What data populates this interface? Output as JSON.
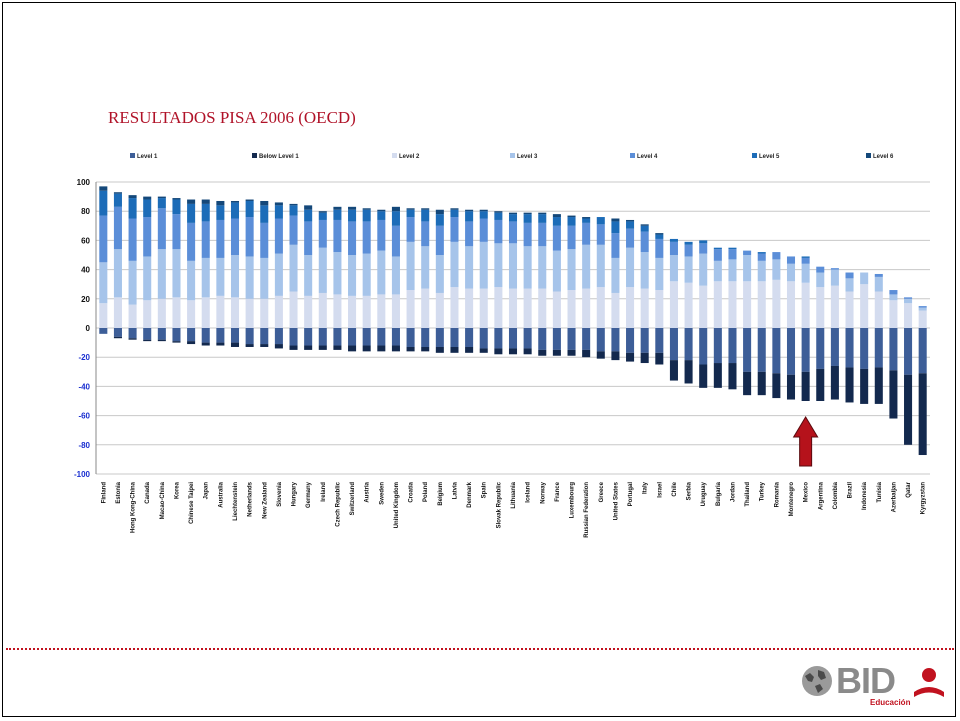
{
  "title": "RESULTADOS PISA 2006 (OECD)",
  "logo": {
    "text": "BID",
    "subtitle": "Educación"
  },
  "chart_data": {
    "type": "bar",
    "stacked": "diverging",
    "ylim": [
      -100,
      100
    ],
    "yticks": [
      100,
      80,
      60,
      40,
      20,
      0,
      -20,
      -40,
      -60,
      -80,
      -100
    ],
    "ytick_labels": [
      "100",
      "80",
      "60",
      "40",
      "20",
      "0",
      "-20",
      "-40",
      "-60",
      "-80",
      "-100"
    ],
    "grid": true,
    "legend_position": "top",
    "legend": [
      "Level 1",
      "Below Level 1",
      "Level 2",
      "Level 3",
      "Level 4",
      "Level 5",
      "Level 6"
    ],
    "colors": {
      "Level 2": "#d4dcef",
      "Level 3": "#a6c4ea",
      "Level 4": "#5b8ed8",
      "Level 5": "#1c6cb8",
      "Level 6": "#14487a",
      "Level 1": "#3d5e98",
      "Below Level 1": "#13294e"
    },
    "categories": [
      "Finland",
      "Estonia",
      "Hong Kong-China",
      "Canada",
      "Macao-China",
      "Korea",
      "Chinese Taipei",
      "Japan",
      "Australia",
      "Liechtenstein",
      "Netherlands",
      "New Zealand",
      "Slovenia",
      "Hungary",
      "Germany",
      "Ireland",
      "Czech Republic",
      "Switzerland",
      "Austria",
      "Sweden",
      "United Kingdom",
      "Croatia",
      "Poland",
      "Belgium",
      "Latvia",
      "Denmark",
      "Spain",
      "Slovak Republic",
      "Lithuania",
      "Iceland",
      "Norway",
      "France",
      "Luxembourg",
      "Russian Federation",
      "Greece",
      "United States",
      "Portugal",
      "Italy",
      "Israel",
      "Chile",
      "Serbia",
      "Uruguay",
      "Bulgaria",
      "Jordan",
      "Thailand",
      "Turkey",
      "Romania",
      "Montenegro",
      "Mexico",
      "Argentina",
      "Colombia",
      "Brazil",
      "Indonesia",
      "Tunisia",
      "Azerbaijan",
      "Qatar",
      "Kyrgyzstan"
    ],
    "series": [
      {
        "name": "Level 2",
        "values": [
          17,
          21,
          16,
          19,
          20,
          21,
          19,
          21,
          22,
          21,
          20,
          20,
          22,
          25,
          22,
          24,
          23,
          22,
          22,
          23,
          23,
          26,
          27,
          24,
          28,
          27,
          27,
          28,
          27,
          27,
          27,
          25,
          26,
          27,
          28,
          24,
          28,
          27,
          26,
          32,
          31,
          29,
          32,
          32,
          32,
          32,
          33,
          32,
          31,
          28,
          29,
          25,
          30,
          25,
          19,
          17,
          12
        ]
      },
      {
        "name": "Level 3",
        "values": [
          28,
          33,
          30,
          30,
          34,
          33,
          27,
          27,
          26,
          29,
          29,
          28,
          29,
          32,
          28,
          31,
          29,
          28,
          29,
          30,
          26,
          33,
          29,
          26,
          31,
          29,
          32,
          30,
          31,
          29,
          29,
          28,
          28,
          30,
          29,
          24,
          27,
          25,
          22,
          18,
          18,
          22,
          14,
          15,
          18,
          14,
          14,
          12,
          13,
          10,
          11,
          9,
          8,
          10,
          4,
          3,
          2
        ]
      },
      {
        "name": "Level 4",
        "values": [
          32,
          29,
          29,
          27,
          28,
          24,
          26,
          25,
          26,
          25,
          27,
          24,
          24,
          20,
          23,
          19,
          22,
          23,
          22,
          21,
          21,
          17,
          17,
          20,
          17,
          17,
          16,
          16,
          15,
          16,
          16,
          17,
          16,
          15,
          14,
          17,
          13,
          14,
          13,
          9,
          8,
          7,
          8,
          7,
          3,
          5,
          5,
          5,
          4,
          4,
          1,
          4,
          0,
          2,
          3,
          1,
          1
        ]
      },
      {
        "name": "Level 5",
        "values": [
          17,
          9,
          14,
          12,
          7,
          10,
          13,
          12,
          10,
          11,
          11,
          12,
          9,
          7,
          8,
          5,
          7,
          8,
          8,
          6,
          10,
          5,
          8,
          8,
          5,
          7,
          5,
          5,
          5,
          6,
          6,
          6,
          6,
          3,
          5,
          8,
          5,
          4,
          3,
          2,
          2,
          2,
          1,
          1,
          0,
          1,
          0,
          0,
          1,
          0,
          0,
          0,
          0,
          0,
          0,
          0,
          0
        ]
      },
      {
        "name": "Level 6",
        "values": [
          3,
          1,
          2,
          2,
          1,
          1,
          3,
          3,
          3,
          1,
          1,
          3,
          2,
          1,
          3,
          1,
          2,
          2,
          1,
          1,
          3,
          1,
          1,
          3,
          1,
          1,
          1,
          1,
          1,
          1,
          1,
          2,
          1,
          1,
          0,
          2,
          1,
          1,
          1,
          0,
          0,
          0,
          0,
          0,
          0,
          0,
          0,
          0,
          0,
          0,
          0,
          0,
          0,
          0,
          0,
          0,
          0
        ]
      },
      {
        "name": "Level 1",
        "values": [
          4,
          6,
          7,
          8,
          8,
          9,
          9,
          10,
          10,
          10,
          11,
          11,
          11,
          12,
          12,
          12,
          12,
          12,
          12,
          12,
          12,
          13,
          13,
          13,
          13,
          13,
          14,
          14,
          14,
          14,
          15,
          15,
          15,
          15,
          16,
          16,
          17,
          17,
          17,
          22,
          22,
          25,
          24,
          24,
          30,
          30,
          31,
          32,
          30,
          28,
          26,
          27,
          28,
          27,
          29,
          32,
          31
        ]
      },
      {
        "name": "Below Level 1",
        "values": [
          0,
          1,
          1,
          1,
          1,
          1,
          2,
          2,
          2,
          3,
          2,
          2,
          3,
          3,
          3,
          3,
          3,
          4,
          4,
          4,
          4,
          3,
          3,
          4,
          4,
          4,
          3,
          4,
          4,
          4,
          4,
          4,
          4,
          5,
          5,
          6,
          6,
          7,
          8,
          14,
          16,
          16,
          17,
          18,
          16,
          16,
          17,
          17,
          20,
          22,
          23,
          24,
          24,
          25,
          33,
          48,
          56
        ]
      }
    ]
  }
}
